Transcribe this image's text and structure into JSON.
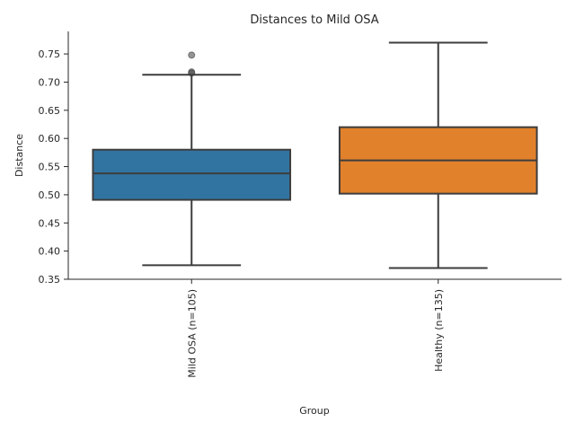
{
  "chart_data": {
    "type": "box",
    "title": "Distances to Mild OSA",
    "xlabel": "Group",
    "ylabel": "Distance",
    "ylim": [
      0.35,
      0.79
    ],
    "yticks": [
      0.35,
      0.4,
      0.45,
      0.5,
      0.55,
      0.6,
      0.65,
      0.7,
      0.75
    ],
    "ytick_labels": [
      "0.35",
      "0.40",
      "0.45",
      "0.50",
      "0.55",
      "0.60",
      "0.65",
      "0.70",
      "0.75"
    ],
    "grid": false,
    "categories": [
      "Mild OSA (n=105)",
      "Healthy (n=135)"
    ],
    "boxes": [
      {
        "category": "Mild OSA (n=105)",
        "color": "#3274a1",
        "whisker_low": 0.375,
        "q1": 0.491,
        "median": 0.538,
        "q3": 0.58,
        "whisker_high": 0.713,
        "outliers": [
          0.716,
          0.718,
          0.748
        ]
      },
      {
        "category": "Healthy (n=135)",
        "color": "#e1812c",
        "whisker_low": 0.37,
        "q1": 0.502,
        "median": 0.561,
        "q3": 0.62,
        "whisker_high": 0.77,
        "outliers": []
      }
    ]
  }
}
